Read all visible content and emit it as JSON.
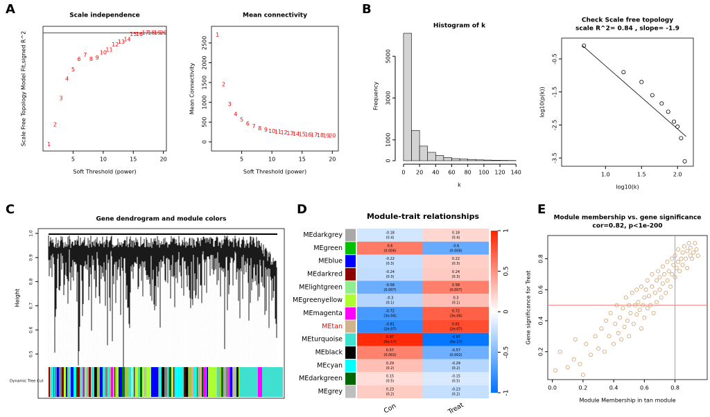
{
  "panel_labels": [
    "A",
    "B",
    "C",
    "D",
    "E"
  ],
  "chart_data": [
    {
      "type": "scatter",
      "title": "Scale independence",
      "xlabel": "Soft Threshold (power)",
      "ylabel": "Scale Free Topology Model Fit,signed R^2",
      "point_style": "label",
      "color": "#ff0000",
      "x": [
        1,
        2,
        3,
        4,
        5,
        6,
        7,
        8,
        9,
        10,
        11,
        12,
        13,
        14,
        15,
        16,
        17,
        18,
        19,
        20
      ],
      "values": [
        0.05,
        0.2,
        0.4,
        0.55,
        0.62,
        0.7,
        0.73,
        0.7,
        0.71,
        0.75,
        0.77,
        0.81,
        0.83,
        0.85,
        0.89,
        0.89,
        0.9,
        0.9,
        0.9,
        0.9
      ],
      "xlim": [
        0,
        20.5
      ],
      "ylim": [
        0,
        0.95
      ],
      "xticks": [
        5,
        10,
        15,
        20
      ],
      "hline": 0.9,
      "line_color": "#ff0000"
    },
    {
      "type": "scatter",
      "title": "Mean connectivity",
      "xlabel": "Soft Threshold (power)",
      "ylabel": "Mean Connectivity",
      "point_style": "label",
      "color": "#ff0000",
      "x": [
        1,
        2,
        3,
        4,
        5,
        6,
        7,
        8,
        9,
        10,
        11,
        12,
        13,
        14,
        15,
        16,
        17,
        18,
        19,
        20
      ],
      "values": [
        2700,
        1450,
        950,
        700,
        560,
        460,
        390,
        340,
        300,
        270,
        250,
        230,
        215,
        200,
        190,
        180,
        172,
        165,
        158,
        152
      ],
      "xlim": [
        0,
        21
      ],
      "ylim": [
        -230,
        2920
      ],
      "xticks": [
        5,
        10,
        15,
        20
      ],
      "yticks": [
        0,
        500,
        1000,
        1500,
        2000,
        2500
      ]
    },
    {
      "type": "histogram",
      "title": "Histogram of k",
      "xlabel": "k",
      "ylabel": "Frequency",
      "color": "#d3d3d3",
      "bins": [
        0,
        10,
        20,
        30,
        40,
        50,
        60,
        70,
        80,
        90,
        100,
        110,
        120,
        130,
        140
      ],
      "values": [
        6100,
        1450,
        700,
        400,
        250,
        150,
        100,
        80,
        60,
        40,
        30,
        20,
        15,
        10
      ],
      "xlim": [
        -6,
        145
      ],
      "ylim": [
        0,
        6200
      ],
      "xticks": [
        0,
        20,
        40,
        60,
        80,
        100,
        120,
        140
      ],
      "yticks": [
        0,
        1000,
        3000,
        5000
      ]
    },
    {
      "type": "scatter",
      "title": "Check Scale free topology",
      "subtitle": "scale R^2= 0.84 , slope= -1.9",
      "xlabel": "log10(k)",
      "ylabel": "log10(p(k))",
      "point_style": "circle",
      "color": "#000000",
      "x": [
        0.7,
        1.25,
        1.5,
        1.65,
        1.78,
        1.87,
        1.95,
        2.0,
        2.05,
        2.1
      ],
      "values": [
        -0.1,
        -0.9,
        -1.2,
        -1.6,
        -1.85,
        -2.1,
        -2.4,
        -2.55,
        -2.9,
        -3.6
      ],
      "fit_line": {
        "x": [
          0.68,
          2.12
        ],
        "values": [
          -0.1,
          -2.85
        ]
      },
      "xlim": [
        0.39,
        2.22
      ],
      "ylim": [
        -3.75,
        0.13
      ],
      "xticks": [
        {
          "value": 1,
          "label": "1.0"
        },
        1.5,
        {
          "value": 2,
          "label": "2.0"
        }
      ],
      "yticks": [
        -0.5,
        -1.5,
        -2.5,
        -3.5
      ]
    },
    {
      "type": "dendrogram",
      "title": "Gene dendrogram and module colors",
      "ylabel": "Height",
      "color_row_label": "Dynamic Tree Cut",
      "ylim": [
        0.46,
        1.02
      ],
      "yticks": [
        0.5,
        0.6,
        0.7,
        0.8,
        0.9,
        {
          "value": 1,
          "label": "1.0"
        }
      ]
    },
    {
      "type": "heatmap",
      "title": "Module-trait relationships",
      "rows": [
        "MEdarkgrey",
        "MEgreen",
        "MEblue",
        "MEdarkred",
        "MElightgreen",
        "MEgreenyellow",
        "MEmagenta",
        "MEtan",
        "MEturquoise",
        "MEblack",
        "MEcyan",
        "MEdarkgreen",
        "MEgrey"
      ],
      "row_colors": [
        "#a9a9a9",
        "#00c000",
        "#0000ff",
        "#8b0000",
        "#90ee90",
        "#adff2f",
        "#ff00ff",
        "#d2b48c",
        "#40e0d0",
        "#000000",
        "#00ffff",
        "#006400",
        "#bebebe"
      ],
      "highlight_row": "MEtan",
      "highlight_color": "#ff0000",
      "columns": [
        "Con",
        "Treat"
      ],
      "values": [
        [
          -0.18,
          0.18
        ],
        [
          0.6,
          -0.6
        ],
        [
          -0.22,
          0.22
        ],
        [
          -0.24,
          0.24
        ],
        [
          -0.58,
          0.58
        ],
        [
          -0.3,
          0.3
        ],
        [
          -0.72,
          0.72
        ],
        [
          -0.81,
          0.81
        ],
        [
          0.97,
          -0.97
        ],
        [
          0.57,
          -0.57
        ],
        [
          0.29,
          -0.29
        ],
        [
          0.15,
          -0.15
        ],
        [
          0.23,
          -0.23
        ]
      ],
      "cell_labels": [
        [
          "(0.4)",
          "(0.4)"
        ],
        [
          "(0.006)",
          "(0.006)"
        ],
        [
          "(0.3)",
          "(0.3)"
        ],
        [
          "(0.3)",
          "(0.3)"
        ],
        [
          "(0.007)",
          "(0.007)"
        ],
        [
          "(0.1)",
          "(0.1)"
        ],
        [
          "(3e-04)",
          "(3e-04)"
        ],
        [
          "(2e-07)",
          "(2e-07)"
        ],
        [
          "(5e-17)",
          "(5e-17)"
        ],
        [
          "(0.002)",
          "(0.002)"
        ],
        [
          "(0.2)",
          "(0.2)"
        ],
        [
          "(0.5)",
          "(0.5)"
        ],
        [
          "(0.2)",
          "(0.2)"
        ]
      ],
      "scale_lim": [
        -1,
        1
      ],
      "scale_ticks": [
        -1,
        -0.5,
        0,
        0.5,
        1
      ]
    },
    {
      "type": "scatter",
      "title": "Module membership vs. gene significance",
      "subtitle": "cor=0.82, p<1e-200",
      "xlabel": "Module Membership in tan module",
      "ylabel": "Gene significance for Treat",
      "point_style": "circle",
      "color": "#d2a06e",
      "x": [
        0.02,
        0.05,
        0.1,
        0.14,
        0.15,
        0.18,
        0.2,
        0.22,
        0.25,
        0.28,
        0.3,
        0.32,
        0.34,
        0.35,
        0.37,
        0.38,
        0.4,
        0.41,
        0.42,
        0.43,
        0.44,
        0.45,
        0.46,
        0.47,
        0.48,
        0.49,
        0.5,
        0.5,
        0.51,
        0.52,
        0.53,
        0.54,
        0.55,
        0.55,
        0.56,
        0.57,
        0.58,
        0.58,
        0.59,
        0.6,
        0.6,
        0.61,
        0.62,
        0.62,
        0.63,
        0.64,
        0.65,
        0.65,
        0.66,
        0.67,
        0.68,
        0.68,
        0.69,
        0.7,
        0.7,
        0.71,
        0.72,
        0.72,
        0.73,
        0.74,
        0.75,
        0.75,
        0.76,
        0.77,
        0.78,
        0.78,
        0.79,
        0.8,
        0.8,
        0.81,
        0.82,
        0.82,
        0.83,
        0.84,
        0.85,
        0.85,
        0.86,
        0.87,
        0.88,
        0.88,
        0.89,
        0.9,
        0.9,
        0.91,
        0.92,
        0.93,
        0.94,
        0.95
      ],
      "values": [
        0.08,
        0.2,
        0.1,
        0.15,
        0.28,
        0.12,
        0.05,
        0.25,
        0.18,
        0.3,
        0.22,
        0.35,
        0.2,
        0.4,
        0.3,
        0.45,
        0.25,
        0.38,
        0.5,
        0.32,
        0.42,
        0.28,
        0.48,
        0.36,
        0.55,
        0.4,
        0.3,
        0.5,
        0.45,
        0.58,
        0.38,
        0.5,
        0.44,
        0.6,
        0.52,
        0.47,
        0.35,
        0.62,
        0.5,
        0.55,
        0.42,
        0.6,
        0.48,
        0.66,
        0.56,
        0.5,
        0.62,
        0.7,
        0.45,
        0.58,
        0.66,
        0.52,
        0.72,
        0.6,
        0.68,
        0.55,
        0.75,
        0.64,
        0.7,
        0.58,
        0.78,
        0.66,
        0.72,
        0.62,
        0.8,
        0.7,
        0.76,
        0.82,
        0.68,
        0.74,
        0.78,
        0.86,
        0.72,
        0.8,
        0.84,
        0.76,
        0.88,
        0.8,
        0.85,
        0.74,
        0.9,
        0.82,
        0.87,
        0.8,
        0.84,
        0.9,
        0.86,
        0.82
      ],
      "xlim": [
        -0.03,
        1.01
      ],
      "ylim": [
        0.02,
        0.95
      ],
      "xticks": [
        {
          "value": 0,
          "label": "0.0"
        },
        0.2,
        0.4,
        0.6,
        0.8
      ],
      "yticks": [
        0.2,
        0.4,
        0.6,
        0.8
      ],
      "hline": 0.5,
      "vline": 0.8,
      "line_color": "#f08080"
    }
  ]
}
